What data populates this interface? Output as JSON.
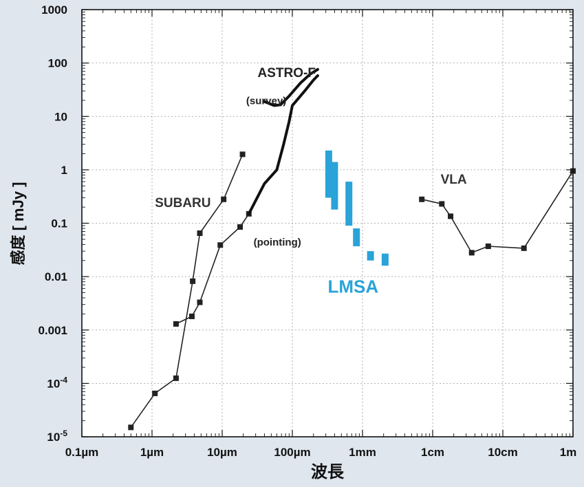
{
  "chart_data": {
    "type": "line",
    "xlabel": "波長",
    "ylabel": "感度 [ mJy ]",
    "xscale": "log",
    "yscale": "log",
    "x_unit": "m",
    "xlim": [
      1e-07,
      1
    ],
    "ylim": [
      1e-05,
      1000
    ],
    "grid": true,
    "x_ticks": [
      {
        "value": 1e-07,
        "label": "0.1µm"
      },
      {
        "value": 1e-06,
        "label": "1µm"
      },
      {
        "value": 1e-05,
        "label": "10µm"
      },
      {
        "value": 0.0001,
        "label": "100µm"
      },
      {
        "value": 0.001,
        "label": "1mm"
      },
      {
        "value": 0.01,
        "label": "1cm"
      },
      {
        "value": 0.1,
        "label": "10cm"
      },
      {
        "value": 1,
        "label": "1m"
      }
    ],
    "y_ticks": [
      {
        "value": 1e-05,
        "label": "10",
        "sup": "-5"
      },
      {
        "value": 0.0001,
        "label": "10",
        "sup": "-4"
      },
      {
        "value": 0.001,
        "label": "0.001",
        "sup": ""
      },
      {
        "value": 0.01,
        "label": "0.01",
        "sup": ""
      },
      {
        "value": 0.1,
        "label": "0.1",
        "sup": ""
      },
      {
        "value": 1,
        "label": "1",
        "sup": ""
      },
      {
        "value": 10,
        "label": "10",
        "sup": ""
      },
      {
        "value": 100,
        "label": "100",
        "sup": ""
      },
      {
        "value": 1000,
        "label": "1000",
        "sup": ""
      }
    ],
    "series": [
      {
        "id": "subaru-a",
        "color": "#222222",
        "marker": "square",
        "points": [
          [
            5e-07,
            1.5e-05
          ],
          [
            1.1e-06,
            6.5e-05
          ],
          [
            2.2e-06,
            0.000125
          ],
          [
            3.8e-06,
            0.0082
          ],
          [
            4.8e-06,
            0.065
          ],
          [
            1.05e-05,
            0.28
          ],
          [
            1.95e-05,
            1.95
          ]
        ]
      },
      {
        "id": "subaru-b",
        "color": "#222222",
        "marker": "square",
        "points": [
          [
            2.2e-06,
            0.0013
          ],
          [
            3.7e-06,
            0.0018
          ],
          [
            4.8e-06,
            0.0033
          ],
          [
            9.4e-06,
            0.039
          ],
          [
            1.8e-05,
            0.085
          ],
          [
            2.4e-05,
            0.15
          ]
        ]
      },
      {
        "id": "astro-f-pointing",
        "color": "#111111",
        "marker": "none",
        "points": [
          [
            2.4e-05,
            0.15
          ],
          [
            4e-05,
            0.55
          ],
          [
            6e-05,
            1.0
          ],
          [
            7.5e-05,
            3.0
          ],
          [
            9e-05,
            8.0
          ],
          [
            0.0001,
            16
          ],
          [
            0.00015,
            30
          ],
          [
            0.0002,
            48
          ],
          [
            0.00023,
            58
          ]
        ]
      },
      {
        "id": "astro-f-survey",
        "color": "#111111",
        "marker": "none",
        "points": [
          [
            4e-05,
            19
          ],
          [
            5.5e-05,
            16
          ],
          [
            6.8e-05,
            16.5
          ],
          [
            9e-05,
            24
          ],
          [
            0.00013,
            42
          ],
          [
            0.00018,
            62
          ],
          [
            0.00023,
            76
          ]
        ]
      },
      {
        "id": "vla",
        "color": "#222222",
        "marker": "square",
        "points": [
          [
            0.007,
            0.28
          ],
          [
            0.0135,
            0.23
          ],
          [
            0.018,
            0.135
          ],
          [
            0.036,
            0.028
          ],
          [
            0.062,
            0.037
          ],
          [
            0.2,
            0.034
          ],
          [
            1.0,
            0.95
          ]
        ]
      }
    ],
    "lmsa_bars": {
      "color": "#2aa3d8",
      "bars": [
        {
          "x": 0.00033,
          "ylow": 0.3,
          "yhigh": 2.3
        },
        {
          "x": 0.0004,
          "ylow": 0.18,
          "yhigh": 1.4
        },
        {
          "x": 0.00064,
          "ylow": 0.09,
          "yhigh": 0.6
        },
        {
          "x": 0.00082,
          "ylow": 0.037,
          "yhigh": 0.08
        },
        {
          "x": 0.0013,
          "ylow": 0.02,
          "yhigh": 0.03
        },
        {
          "x": 0.0021,
          "ylow": 0.016,
          "yhigh": 0.027
        }
      ]
    },
    "annotations": [
      {
        "text": "SUBARU",
        "x": 1.1e-06,
        "y": 0.2,
        "color": "#333333"
      },
      {
        "text": "ASTRO-F",
        "x": 3.2e-05,
        "y": 55,
        "color": "#222222"
      },
      {
        "text": "(survey)",
        "x": 2.2e-05,
        "y": 17,
        "color": "#222222"
      },
      {
        "text": "(pointing)",
        "x": 2.8e-05,
        "y": 0.038,
        "color": "#222222"
      },
      {
        "text": "LMSA",
        "x": 0.00032,
        "y": 0.005,
        "color": "#2aa3d8"
      },
      {
        "text": "VLA",
        "x": 0.013,
        "y": 0.55,
        "color": "#333333"
      }
    ]
  }
}
